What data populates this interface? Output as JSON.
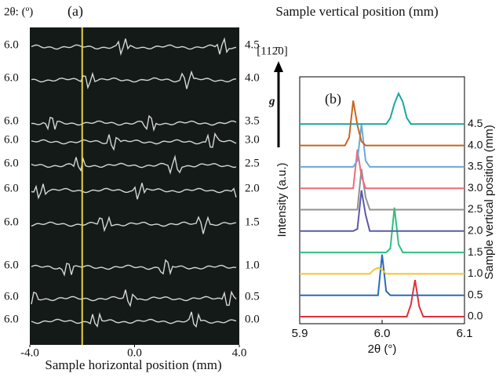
{
  "chart_data": [
    {
      "type": "image-stack",
      "panel": "(a)",
      "title": "Sample vertical position (mm)",
      "y_label": "2θ: (º)",
      "x_label": "Sample horizontal position (mm)",
      "xlim": [
        -4,
        4
      ],
      "xticks": [
        {
          "value": -4,
          "label": "-4.0"
        },
        {
          "value": 0,
          "label": "0.0"
        },
        {
          "value": 4,
          "label": "4.0"
        }
      ],
      "rows": [
        {
          "left": "6.0",
          "right": "4.5"
        },
        {
          "left": "6.0",
          "right": "4.0"
        },
        {
          "left": "6.0",
          "right": "3.5"
        },
        {
          "left": "6.0",
          "right": "3.0"
        },
        {
          "left": "6.0",
          "right": "2.5"
        },
        {
          "left": "6.0",
          "right": "2.0"
        },
        {
          "left": "6.0",
          "right": "1.5"
        },
        {
          "left": "6.0",
          "right": "1.0"
        },
        {
          "left": "6.0",
          "right": "0.5"
        },
        {
          "left": "6.0",
          "right": "0.0"
        }
      ],
      "marker_x": -2.0,
      "marker_color": "#e8d040"
    },
    {
      "type": "line",
      "panel": "(b)",
      "x_label": "2θ (°)",
      "y_label": "Intensity (a.u.)",
      "y2_label": "Sample vertical position (mm)",
      "direction": "[112̄0]",
      "vector": "g",
      "xlim": [
        5.9,
        6.1
      ],
      "xticks": [
        5.9,
        {
          "value": 6.0,
          "label": "6.0"
        },
        6.1
      ],
      "x": [
        5.9,
        5.905,
        5.91,
        5.915,
        5.92,
        5.925,
        5.93,
        5.935,
        5.94,
        5.945,
        5.95,
        5.955,
        5.96,
        5.965,
        5.97,
        5.975,
        5.98,
        5.985,
        5.99,
        5.995,
        6,
        6.005,
        6.01,
        6.015,
        6.02,
        6.025,
        6.03,
        6.035,
        6.04,
        6.045,
        6.05,
        6.055,
        6.06,
        6.065,
        6.07,
        6.075,
        6.08,
        6.085,
        6.09,
        6.095,
        6.1
      ],
      "series": [
        {
          "name": "0.0",
          "color": "#e0303a",
          "values": [
            0,
            0,
            0,
            0,
            0,
            0,
            0,
            0,
            0,
            0,
            0,
            0,
            0,
            0,
            0,
            0,
            0,
            0,
            0,
            0,
            0,
            0,
            0,
            0,
            0,
            0,
            0,
            0.6,
            1.8,
            0.5,
            0,
            0,
            0,
            0,
            0,
            0,
            0,
            0,
            0,
            0,
            0
          ]
        },
        {
          "name": "0.5",
          "color": "#2a6cb4",
          "values": [
            0,
            0,
            0,
            0,
            0,
            0,
            0,
            0,
            0,
            0,
            0,
            0,
            0,
            0,
            0,
            0,
            0,
            0,
            0,
            0,
            2.0,
            0.2,
            0,
            0,
            0,
            0,
            0,
            0,
            0,
            0,
            0,
            0,
            0,
            0,
            0,
            0,
            0,
            0,
            0,
            0,
            0
          ]
        },
        {
          "name": "1.0",
          "color": "#f4c430",
          "values": [
            0,
            0,
            0,
            0,
            0,
            0,
            0,
            0,
            0,
            0,
            0,
            0,
            0,
            0,
            0,
            0,
            0,
            0,
            0.2,
            0.3,
            0.2,
            0,
            0,
            0,
            0,
            0,
            0,
            0,
            0,
            0,
            0,
            0,
            0,
            0,
            0,
            0,
            0,
            0,
            0,
            0,
            0
          ]
        },
        {
          "name": "1.5",
          "color": "#2fbf7f",
          "values": [
            0,
            0,
            0,
            0,
            0,
            0,
            0,
            0,
            0,
            0,
            0,
            0,
            0,
            0,
            0,
            0,
            0,
            0,
            0,
            0,
            0,
            0,
            0.2,
            2.2,
            0.4,
            0,
            0,
            0,
            0,
            0,
            0,
            0,
            0,
            0,
            0,
            0,
            0,
            0,
            0,
            0,
            0
          ]
        },
        {
          "name": "2.0",
          "color": "#5a5aa8",
          "values": [
            0,
            0,
            0,
            0,
            0,
            0,
            0,
            0,
            0,
            0,
            0,
            0,
            0,
            0,
            0.1,
            2.0,
            0.8,
            0,
            0,
            0,
            0,
            0,
            0,
            0,
            0,
            0,
            0,
            0,
            0,
            0,
            0,
            0,
            0,
            0,
            0,
            0,
            0,
            0,
            0,
            0,
            0
          ]
        },
        {
          "name": "2.5",
          "color": "#909090",
          "values": [
            0,
            0,
            0,
            0,
            0,
            0,
            0,
            0,
            0,
            0,
            0,
            0,
            0,
            0,
            0,
            2.0,
            0.6,
            0,
            0,
            0,
            0,
            0,
            0,
            0,
            0,
            0,
            0,
            0,
            0,
            0,
            0,
            0,
            0,
            0,
            0,
            0,
            0,
            0,
            0,
            0,
            0
          ]
        },
        {
          "name": "3.0",
          "color": "#f06a78",
          "values": [
            0,
            0,
            0,
            0,
            0,
            0,
            0,
            0,
            0,
            0,
            0,
            0,
            0,
            0,
            1.9,
            0.6,
            0,
            0,
            0,
            0,
            0,
            0,
            0,
            0,
            0,
            0,
            0,
            0,
            0,
            0,
            0,
            0,
            0,
            0,
            0,
            0,
            0,
            0,
            0,
            0,
            0
          ]
        },
        {
          "name": "3.5",
          "color": "#6aa8e0",
          "values": [
            0,
            0,
            0,
            0,
            0,
            0,
            0,
            0,
            0,
            0,
            0,
            0,
            0,
            0,
            0.3,
            2.1,
            0.3,
            0,
            0,
            0,
            0,
            0,
            0,
            0,
            0,
            0,
            0,
            0,
            0,
            0,
            0,
            0,
            0,
            0,
            0,
            0,
            0,
            0,
            0,
            0,
            0
          ]
        },
        {
          "name": "4.0",
          "color": "#c8651e",
          "values": [
            0,
            0,
            0,
            0,
            0,
            0,
            0,
            0,
            0,
            0,
            0,
            0,
            0.4,
            2.2,
            1.0,
            0.2,
            0,
            0,
            0,
            0,
            0,
            0,
            0,
            0,
            0,
            0,
            0,
            0,
            0,
            0,
            0,
            0,
            0,
            0,
            0,
            0,
            0,
            0,
            0,
            0,
            0
          ]
        },
        {
          "name": "4.5",
          "color": "#1aa6a0",
          "values": [
            0,
            0,
            0,
            0,
            0,
            0,
            0,
            0,
            0,
            0,
            0,
            0,
            0,
            0,
            0,
            0,
            0,
            0,
            0,
            0,
            0,
            0,
            0.3,
            1.0,
            1.5,
            1.1,
            0.3,
            0,
            0,
            0,
            0,
            0,
            0,
            0,
            0,
            0,
            0,
            0,
            0,
            0,
            0
          ]
        }
      ]
    }
  ]
}
